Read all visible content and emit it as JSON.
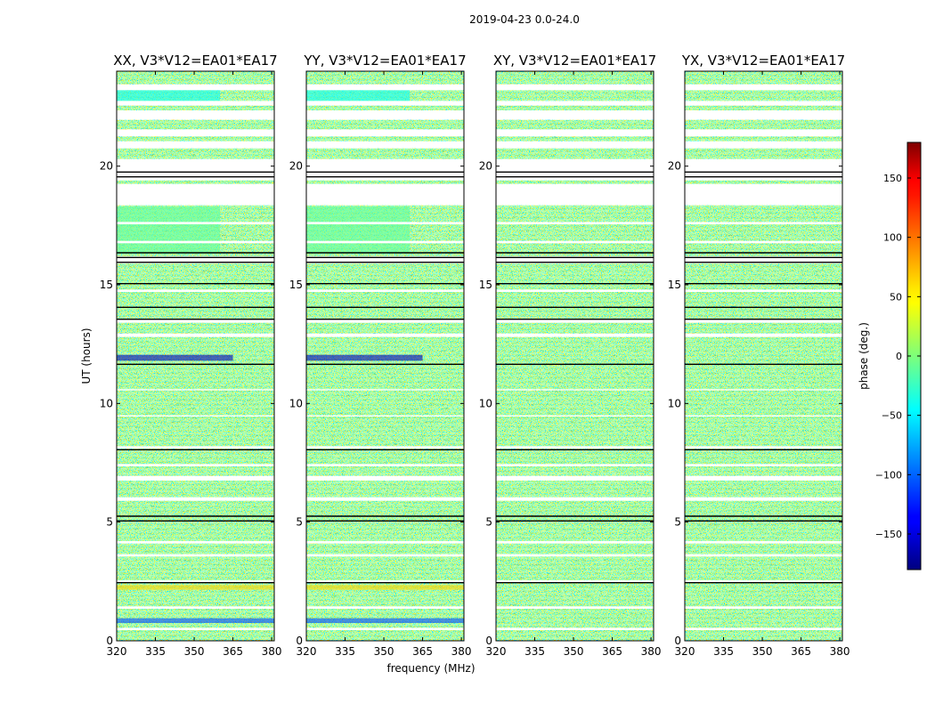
{
  "figure": {
    "suptitle": "2019-04-23 0.0-24.0",
    "shared_ylabel": "UT (hours)",
    "shared_xlabel": "frequency (MHz)"
  },
  "chart_data": {
    "type": "heatmap",
    "title": "2019-04-23 0.0-24.0",
    "xlabel": "frequency (MHz)",
    "ylabel": "UT (hours)",
    "xlim": [
      320,
      381
    ],
    "ylim": [
      0,
      24
    ],
    "x_ticks": [
      320,
      335,
      350,
      365,
      380
    ],
    "y_ticks": [
      0,
      5,
      10,
      15,
      20
    ],
    "colorscale": "jet",
    "colorbar": {
      "label": "phase (deg.)",
      "range": [
        -180,
        180
      ],
      "ticks": [
        -150,
        -100,
        -50,
        0,
        50,
        100,
        150
      ],
      "tick_labels": [
        "−150",
        "−100",
        "−50",
        "0",
        "50",
        "100",
        "150"
      ]
    },
    "panels": [
      {
        "name": "XX, V3*V12=EA01*EA17"
      },
      {
        "name": "YY, V3*V12=EA01*EA17"
      },
      {
        "name": "XY, V3*V12=EA01*EA17"
      },
      {
        "name": "YX, V3*V12=EA01*EA17"
      }
    ],
    "flagged_gaps_ut": [
      [
        23.2,
        23.45
      ],
      [
        22.55,
        22.75
      ],
      [
        21.95,
        22.35
      ],
      [
        21.25,
        21.55
      ],
      [
        20.75,
        21.05
      ],
      [
        19.4,
        20.3
      ],
      [
        18.35,
        19.25
      ],
      [
        17.55,
        17.65
      ],
      [
        16.75,
        16.85
      ],
      [
        15.9,
        16.2
      ],
      [
        14.7,
        14.8
      ],
      [
        13.4,
        13.55
      ],
      [
        12.8,
        12.95
      ],
      [
        10.55,
        10.6
      ],
      [
        9.45,
        9.5
      ],
      [
        8.1,
        8.2
      ],
      [
        7.35,
        7.45
      ],
      [
        6.75,
        6.95
      ],
      [
        5.9,
        6.05
      ],
      [
        4.1,
        4.2
      ],
      [
        3.55,
        3.65
      ],
      [
        2.45,
        2.55
      ],
      [
        1.35,
        1.45
      ],
      [
        0.45,
        0.55
      ]
    ],
    "black_lines_ut": [
      19.55,
      19.75,
      16.15,
      16.35,
      15.95,
      15.05,
      14.05,
      13.55,
      11.65,
      8.05,
      5.25,
      5.05,
      2.45
    ],
    "coherent_features": [
      {
        "panels": [
          "XX",
          "YY"
        ],
        "ut": [
          11.8,
          12.05
        ],
        "freq": [
          320,
          365
        ],
        "phase_deg": -160
      },
      {
        "panels": [
          "XX",
          "YY"
        ],
        "ut": [
          0.75,
          0.95
        ],
        "freq": [
          320,
          381
        ],
        "phase_deg": -110
      },
      {
        "panels": [
          "XX",
          "YY"
        ],
        "ut": [
          2.15,
          2.35
        ],
        "freq": [
          320,
          381
        ],
        "phase_deg": 60
      },
      {
        "panels": [
          "XX",
          "YY"
        ],
        "ut": [
          22.6,
          23.4
        ],
        "freq": [
          320,
          360
        ],
        "phase_deg": -40
      },
      {
        "panels": [
          "XX",
          "YY"
        ],
        "ut": [
          16.3,
          18.3
        ],
        "freq": [
          320,
          360
        ],
        "phase_deg": -10
      }
    ]
  }
}
